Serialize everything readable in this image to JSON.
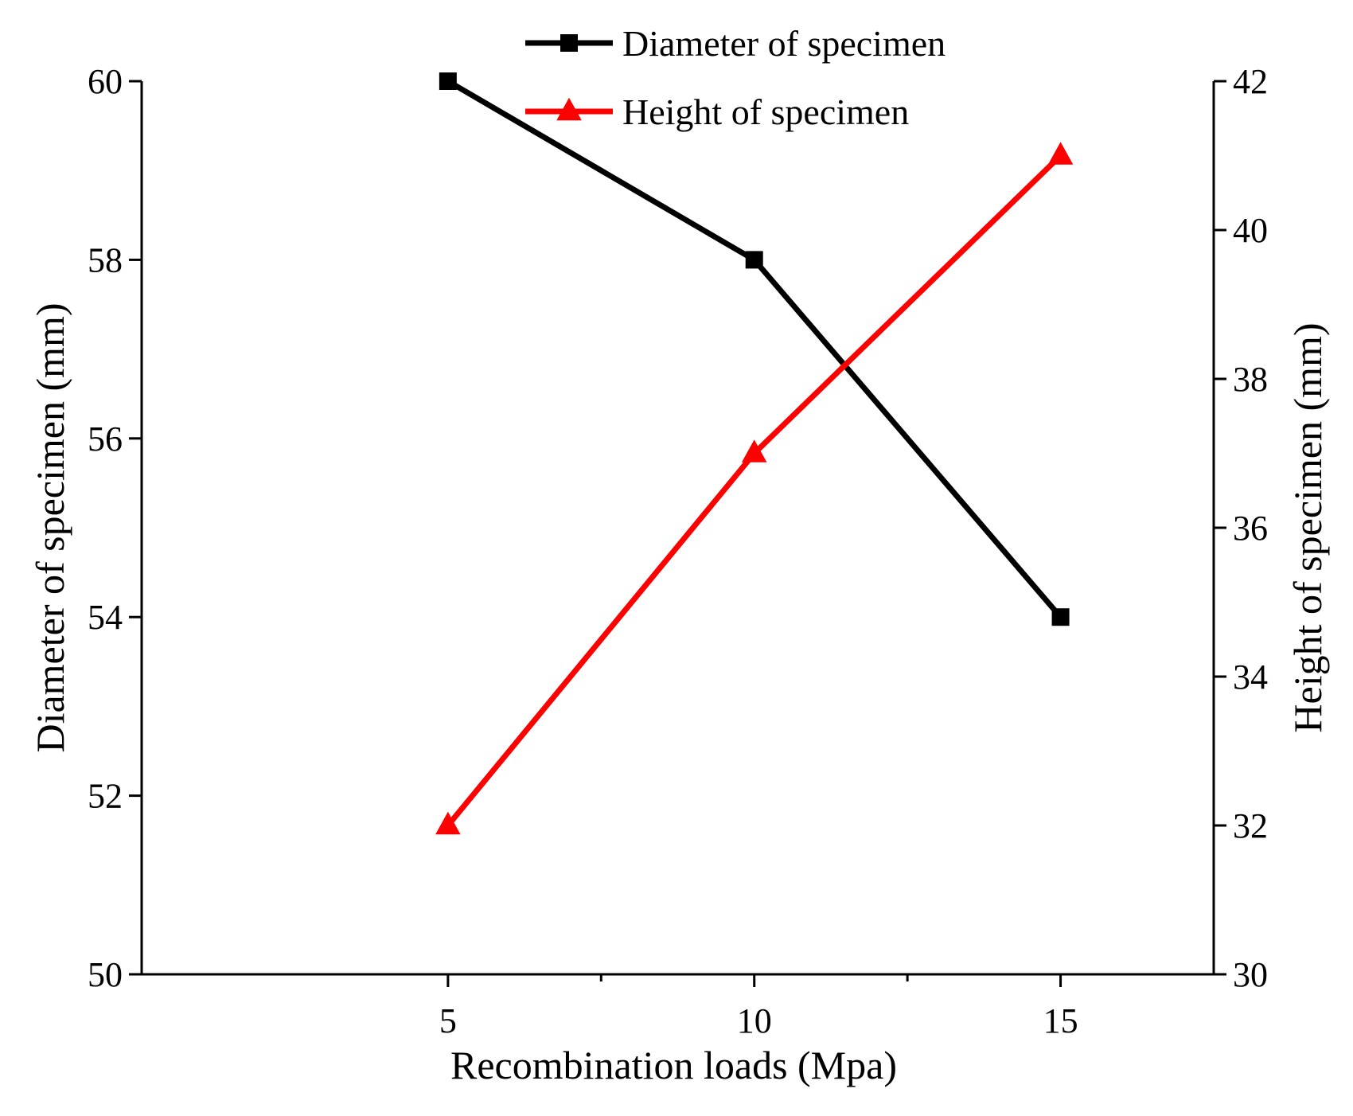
{
  "chart_data": {
    "type": "line",
    "title": "",
    "xlabel": "Recombination loads (Mpa)",
    "ylabel": "Diameter of specimen (mm)",
    "ylabel_right": "Height of specimen (mm)",
    "xlim": [
      0,
      17.5
    ],
    "ylim": [
      50,
      60
    ],
    "ylim_right": [
      30,
      42
    ],
    "x_ticks": [
      5,
      10,
      15
    ],
    "x_minor_ticks": [
      7.5,
      12.5
    ],
    "y_ticks": [
      50,
      52,
      54,
      56,
      58,
      60
    ],
    "y_ticks_right": [
      30,
      32,
      34,
      36,
      38,
      40,
      42
    ],
    "grid": false,
    "legend_position": "top-center",
    "series": [
      {
        "name": "Diameter of specimen",
        "axis": "left",
        "color": "#000000",
        "marker": "square",
        "x": [
          5,
          10,
          15
        ],
        "values": [
          60,
          58,
          54
        ]
      },
      {
        "name": "Height of specimen",
        "axis": "right",
        "color": "#ff0000",
        "marker": "triangle",
        "x": [
          5,
          10,
          15
        ],
        "values": [
          32,
          37,
          41
        ]
      }
    ]
  }
}
